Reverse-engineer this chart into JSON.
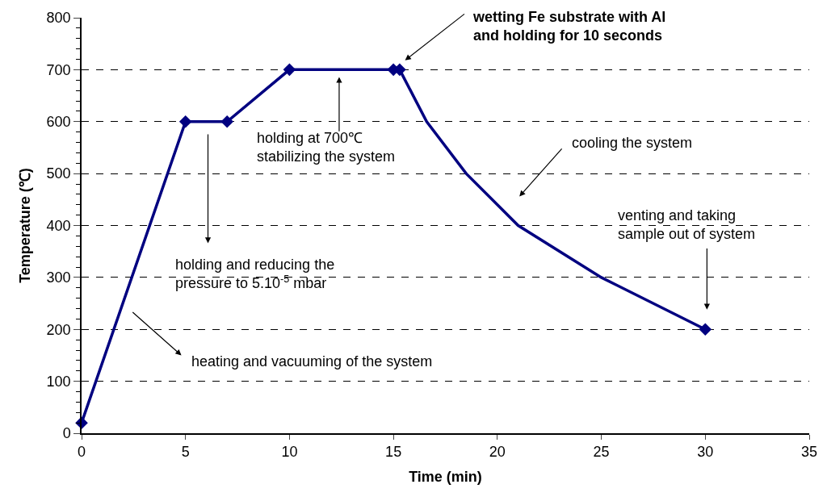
{
  "chart_data": {
    "type": "line",
    "xlabel": "Time (min)",
    "ylabel": "Temperature (℃)",
    "series": [
      {
        "color": "#000080",
        "marker": "none",
        "x": [
          0,
          5,
          7,
          10,
          15,
          15.3,
          16.6,
          18.5,
          21,
          25,
          30
        ],
        "values": [
          20,
          600,
          600,
          700,
          700,
          700,
          600,
          500,
          400,
          300,
          200
        ]
      },
      {
        "type": "scatter",
        "color": "#000080",
        "marker": "diamond",
        "x": [
          0,
          5,
          7,
          10,
          15,
          15.3,
          30
        ],
        "values": [
          20,
          600,
          600,
          700,
          700,
          700,
          200
        ]
      }
    ],
    "annotations": [
      "wetting Fe substrate with Al\nand holding for 10 seconds",
      "holding at 700℃\nstabilizing the system",
      "holding and reducing the\npressure to 5.10$^{-5}$ mbar",
      "heating and vacuuming of the system",
      "cooling the system",
      "venting and taking\nsample out of system"
    ],
    "xlim": [
      0,
      35
    ],
    "xticks": [
      0,
      5,
      10,
      15,
      20,
      25,
      30,
      35
    ],
    "ylim": [
      0,
      800
    ],
    "yticks": [
      0,
      100,
      200,
      300,
      400,
      500,
      600,
      700,
      800
    ],
    "grid": "y"
  }
}
